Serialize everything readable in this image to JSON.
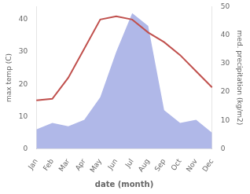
{
  "chart_data": {
    "type": "line",
    "xlabel": "date (month)",
    "ylabel": "max temp (C)",
    "y2label": "med. precipitation (kg/m2)",
    "categories": [
      "Jan",
      "Feb",
      "Mar",
      "Apr",
      "May",
      "Jun",
      "Jul",
      "Aug",
      "Sep",
      "Oct",
      "Nov",
      "Dec"
    ],
    "series": [
      {
        "type": "area",
        "color": "#b0b8e8",
        "values": [
          6,
          8,
          7,
          9,
          16,
          30,
          42,
          38,
          12,
          8,
          9,
          5
        ]
      },
      {
        "type": "line",
        "color": "#c0504d",
        "values": [
          15,
          15.5,
          22,
          31,
          40,
          41,
          40,
          36,
          33,
          29,
          24,
          19
        ]
      }
    ],
    "ylim": [
      0,
      44
    ],
    "yticks": [
      0,
      10,
      20,
      30,
      40
    ],
    "y2lim": [
      0,
      50
    ],
    "y2ticks": [
      0,
      10,
      20,
      30,
      40,
      50
    ],
    "grid": false
  }
}
